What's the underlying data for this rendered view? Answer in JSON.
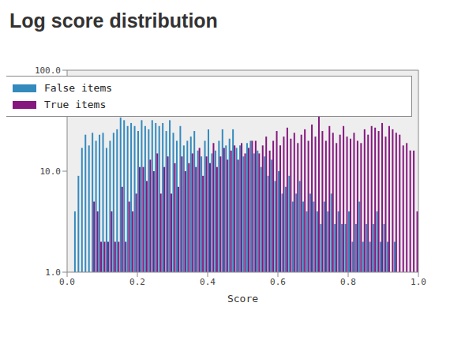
{
  "chart_data": {
    "type": "bar",
    "title": "Log score distribution",
    "xlabel": "Score",
    "bins": [
      0,
      0.01,
      0.02,
      0.03,
      0.04,
      0.05,
      0.06,
      0.07,
      0.08,
      0.09,
      0.1,
      0.11,
      0.12,
      0.13,
      0.14,
      0.15,
      0.16,
      0.17,
      0.18,
      0.19,
      0.2,
      0.21,
      0.22,
      0.23,
      0.24,
      0.25,
      0.26,
      0.27,
      0.28,
      0.29,
      0.3,
      0.31,
      0.32,
      0.33,
      0.34,
      0.35,
      0.36,
      0.37,
      0.38,
      0.39,
      0.4,
      0.41,
      0.42,
      0.43,
      0.44,
      0.45,
      0.46,
      0.47,
      0.48,
      0.49,
      0.5,
      0.51,
      0.52,
      0.53,
      0.54,
      0.55,
      0.56,
      0.57,
      0.58,
      0.59,
      0.6,
      0.61,
      0.62,
      0.63,
      0.64,
      0.65,
      0.66,
      0.67,
      0.68,
      0.69,
      0.7,
      0.71,
      0.72,
      0.73,
      0.74,
      0.75,
      0.76,
      0.77,
      0.78,
      0.79,
      0.8,
      0.81,
      0.82,
      0.83,
      0.84,
      0.85,
      0.86,
      0.87,
      0.88,
      0.89,
      0.9,
      0.91,
      0.92,
      0.93,
      0.94,
      0.95,
      0.96,
      0.97,
      0.98,
      0.99,
      1
    ],
    "series": [
      {
        "name": "False items",
        "color": "#348abd",
        "values": [
          null,
          null,
          4,
          9,
          17,
          23,
          18,
          24,
          20,
          23,
          24,
          17,
          20,
          24,
          26,
          34,
          32,
          28,
          30,
          28,
          25,
          32,
          28,
          26,
          32,
          30,
          28,
          30,
          25,
          32,
          24,
          20,
          28,
          18,
          20,
          22,
          25,
          16,
          14,
          20,
          26,
          15,
          16,
          20,
          26,
          18,
          21,
          26,
          17,
          18,
          14,
          19,
          20,
          15,
          16,
          11,
          14,
          9,
          13,
          8,
          10,
          6,
          7,
          9,
          5,
          6,
          8,
          5,
          4,
          6,
          5,
          4,
          3,
          5,
          4,
          6,
          3,
          4,
          3,
          3,
          4,
          2,
          3,
          5,
          2,
          3,
          2,
          3,
          4,
          2,
          3,
          2,
          null,
          2,
          null,
          null,
          null,
          null,
          null,
          null
        ]
      },
      {
        "name": "True items",
        "color": "#85177f",
        "values": [
          null,
          null,
          null,
          null,
          null,
          null,
          null,
          5,
          4,
          2,
          2,
          2,
          4,
          2,
          2,
          7,
          2,
          5,
          4,
          6,
          11,
          11,
          8,
          13,
          10,
          15,
          6,
          11,
          14,
          6,
          12,
          7,
          14,
          10,
          12,
          15,
          11,
          17,
          9,
          14,
          12,
          19,
          11,
          14,
          17,
          13,
          16,
          18,
          13,
          19,
          15,
          17,
          20,
          20,
          15,
          18,
          22,
          16,
          20,
          25,
          18,
          22,
          27,
          21,
          24,
          19,
          23,
          26,
          20,
          29,
          22,
          37,
          25,
          20,
          28,
          24,
          19,
          23,
          28,
          22,
          21,
          24,
          20,
          19,
          26,
          23,
          28,
          27,
          25,
          30,
          22,
          28,
          26,
          24,
          23,
          18,
          19,
          16,
          16,
          4
        ]
      }
    ],
    "xlim": [
      0,
      1
    ],
    "xticks": [
      {
        "value": 0,
        "label": "0.0"
      },
      {
        "value": 0.2,
        "label": "0.2"
      },
      {
        "value": 0.4,
        "label": "0.4"
      },
      {
        "value": 0.6,
        "label": "0.6"
      },
      {
        "value": 0.8,
        "label": "0.8"
      },
      {
        "value": 1,
        "label": "1.0"
      }
    ],
    "ylim": [
      1,
      100
    ],
    "yticks": [
      {
        "value": 1,
        "label": "1.0"
      },
      {
        "value": 10,
        "label": "10.0"
      },
      {
        "value": 100,
        "label": "100.0"
      }
    ],
    "log": "y",
    "grid": false,
    "legend": "upper right"
  }
}
